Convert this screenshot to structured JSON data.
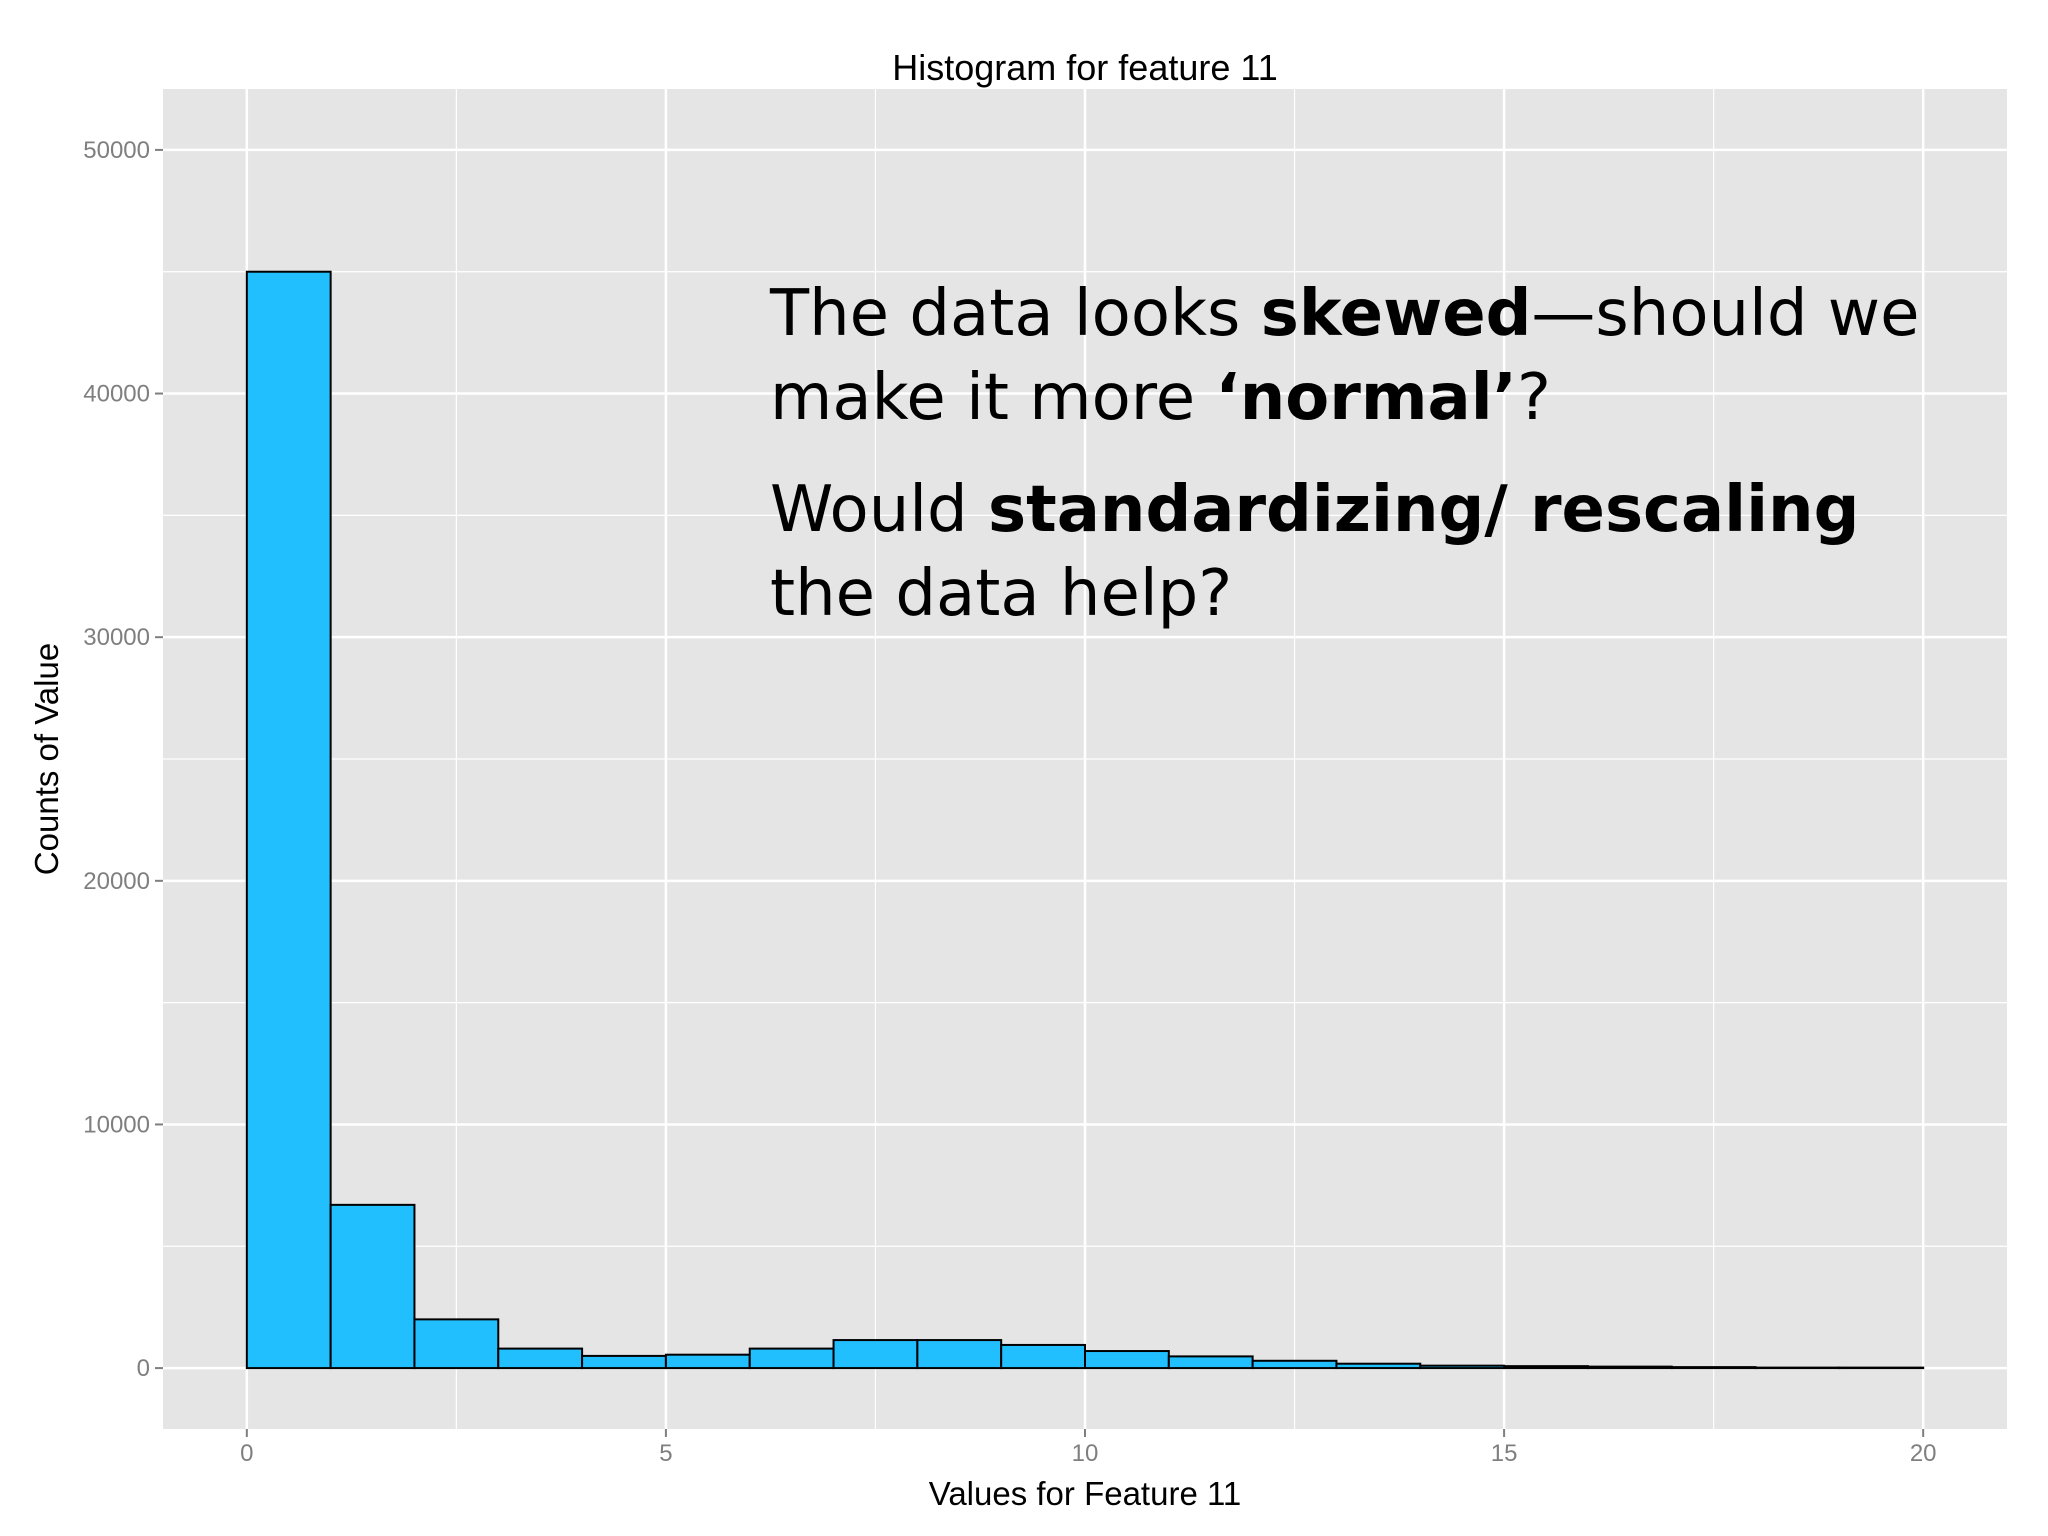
{
  "colors": {
    "panel_bg": "#e5e5e5",
    "gridline": "#ffffff",
    "bar_fill": "#22bfff",
    "bar_stroke": "#000000"
  },
  "chart_data": {
    "type": "bar",
    "subtype": "histogram",
    "title": "Histogram for feature 11",
    "xlabel": "Values for Feature 11",
    "ylabel": "Counts of Value",
    "xlim": [
      -1,
      21
    ],
    "ylim": [
      -2500,
      52500
    ],
    "x_ticks": [
      0,
      5,
      10,
      15,
      20
    ],
    "y_ticks": [
      0,
      10000,
      20000,
      30000,
      40000,
      50000
    ],
    "x_tick_labels": [
      "0",
      "5",
      "10",
      "15",
      "20"
    ],
    "y_tick_labels": [
      "0",
      "10000",
      "20000",
      "30000",
      "40000",
      "50000"
    ],
    "grid": true,
    "bins": [
      {
        "x0": 0,
        "x1": 1,
        "count": 45000
      },
      {
        "x0": 1,
        "x1": 2,
        "count": 6700
      },
      {
        "x0": 2,
        "x1": 3,
        "count": 2000
      },
      {
        "x0": 3,
        "x1": 4,
        "count": 800
      },
      {
        "x0": 4,
        "x1": 5,
        "count": 500
      },
      {
        "x0": 5,
        "x1": 6,
        "count": 550
      },
      {
        "x0": 6,
        "x1": 7,
        "count": 800
      },
      {
        "x0": 7,
        "x1": 8,
        "count": 1150
      },
      {
        "x0": 8,
        "x1": 9,
        "count": 1150
      },
      {
        "x0": 9,
        "x1": 10,
        "count": 950
      },
      {
        "x0": 10,
        "x1": 11,
        "count": 700
      },
      {
        "x0": 11,
        "x1": 12,
        "count": 480
      },
      {
        "x0": 12,
        "x1": 13,
        "count": 300
      },
      {
        "x0": 13,
        "x1": 14,
        "count": 180
      },
      {
        "x0": 14,
        "x1": 15,
        "count": 100
      },
      {
        "x0": 15,
        "x1": 16,
        "count": 80
      },
      {
        "x0": 16,
        "x1": 17,
        "count": 60
      },
      {
        "x0": 17,
        "x1": 18,
        "count": 40
      },
      {
        "x0": 18,
        "x1": 19,
        "count": 20
      },
      {
        "x0": 19,
        "x1": 20,
        "count": 20
      }
    ]
  },
  "annotation": {
    "q1_part1": "The data looks ",
    "q1_bold1": "skewed",
    "q1_part2": "—should we make it more ",
    "q1_bold2": "‘normal’",
    "q1_part3": "?",
    "q2_part1": "Would ",
    "q2_bold1": "standardizing/ rescaling",
    "q2_part2": " the data help?"
  }
}
